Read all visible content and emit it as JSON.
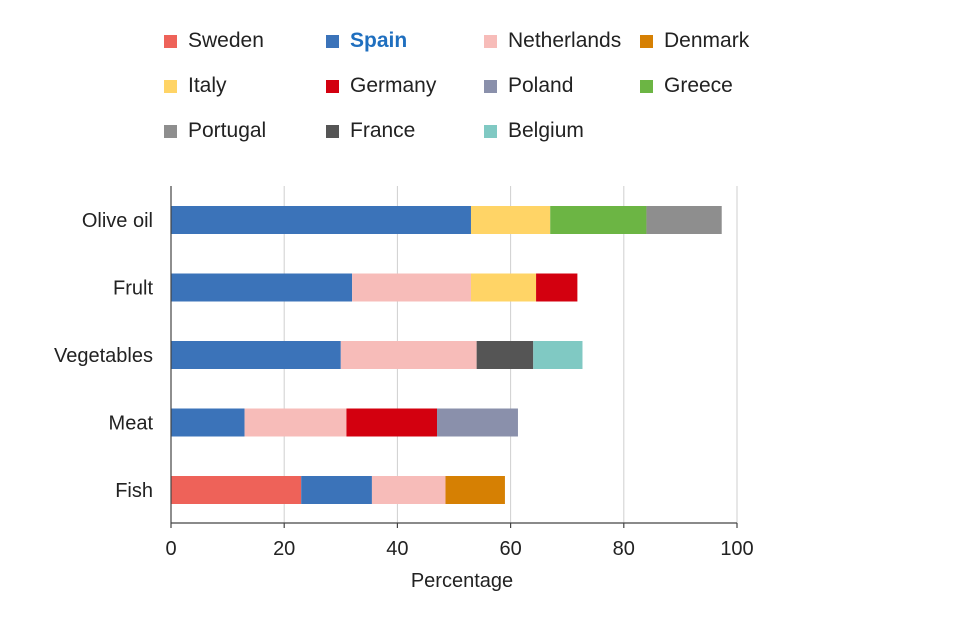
{
  "chart_data": {
    "type": "bar",
    "orientation": "horizontal",
    "stacked": true,
    "title": "",
    "xlabel": "Percentage",
    "ylabel": "",
    "xlim": [
      0,
      100
    ],
    "xticks": [
      0,
      20,
      40,
      60,
      80,
      100
    ],
    "grid": "vertical",
    "legend_position": "top",
    "categories": [
      "Olive oil",
      "Frult",
      "Vegetables",
      "Meat",
      "Fish"
    ],
    "series": [
      {
        "name": "Sweden",
        "color": "#ee6259",
        "values": [
          0,
          0,
          0,
          0,
          23
        ]
      },
      {
        "name": "Spain",
        "color": "#3b73b9",
        "highlight": true,
        "values": [
          53,
          32,
          30,
          13,
          12.5
        ]
      },
      {
        "name": "Netherlands",
        "color": "#f7bcb9",
        "values": [
          0,
          21,
          24,
          18,
          13
        ]
      },
      {
        "name": "Denmark",
        "color": "#d68003",
        "values": [
          0,
          0,
          0,
          0,
          10.5
        ]
      },
      {
        "name": "Italy",
        "color": "#ffd466",
        "values": [
          14,
          11.5,
          0,
          0,
          0
        ]
      },
      {
        "name": "Germany",
        "color": "#d3000f",
        "values": [
          0,
          7.3,
          0,
          16,
          0
        ]
      },
      {
        "name": "Poland",
        "color": "#8a90ab",
        "values": [
          0,
          0,
          0,
          14.3,
          0
        ]
      },
      {
        "name": "Greece",
        "color": "#6cb544",
        "values": [
          17,
          0,
          0,
          0,
          0
        ]
      },
      {
        "name": "Portugal",
        "color": "#8e8e8e",
        "values": [
          13.3,
          0,
          0,
          0,
          0
        ]
      },
      {
        "name": "France",
        "color": "#555555",
        "values": [
          0,
          0,
          10,
          0,
          0
        ]
      },
      {
        "name": "Belgium",
        "color": "#80c9c3",
        "values": [
          0,
          0,
          8.7,
          0,
          0
        ]
      }
    ],
    "legend_order": [
      "Sweden",
      "Spain",
      "Netherlands",
      "Denmark",
      "Italy",
      "Germany",
      "Poland",
      "Greece",
      "Portugal",
      "France",
      "Belgium"
    ]
  }
}
